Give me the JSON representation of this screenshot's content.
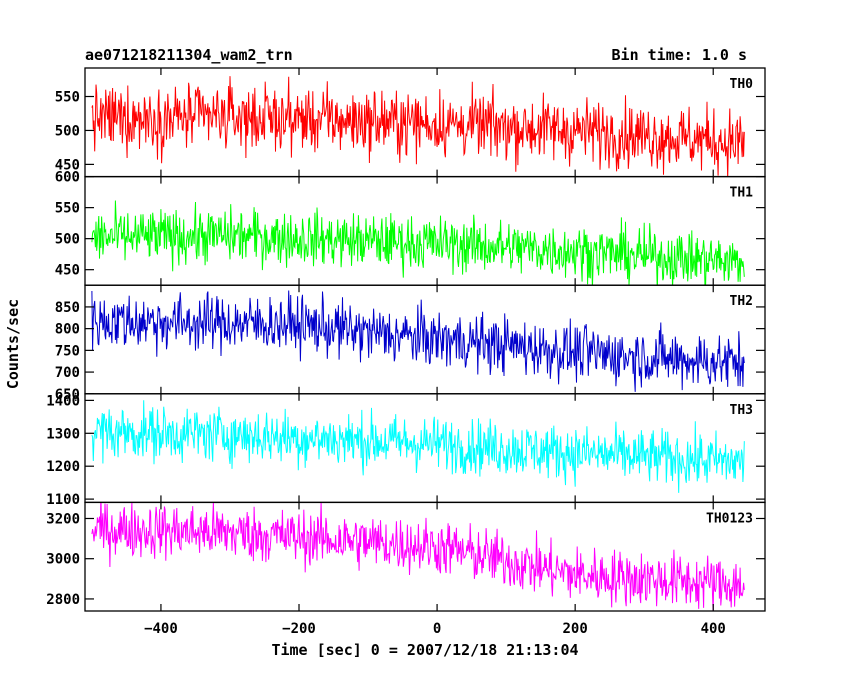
{
  "header": {
    "title": "ae071218211304_wam2_trn",
    "bin_time": "Bin time: 1.0 s"
  },
  "chart_data": {
    "type": "line",
    "xlabel": "Time [sec] 0 = 2007/12/18 21:13:04",
    "ylabel": "Counts/sec",
    "xlim": [
      -510,
      475
    ],
    "x_ticks": [
      -400,
      -200,
      0,
      200,
      400
    ],
    "x_tick_labels": [
      "−400",
      "−200",
      "0",
      "200",
      "400"
    ],
    "data_range_x": [
      -500,
      445
    ],
    "bin_time_s": 1.0,
    "panels": [
      {
        "name": "TH0",
        "color": "#ff0000",
        "ylim": [
          432,
          592
        ],
        "y_ticks": [
          450,
          500,
          550
        ],
        "y_tick_labels": [
          "450",
          "500",
          "550"
        ],
        "trend": [
          [
            -500,
            518
          ],
          [
            -300,
            520
          ],
          [
            0,
            510
          ],
          [
            200,
            500
          ],
          [
            445,
            482
          ]
        ],
        "noise_sd": 24
      },
      {
        "name": "TH1",
        "color": "#00ff00",
        "ylim": [
          425,
          600
        ],
        "y_ticks": [
          450,
          500,
          550,
          600
        ],
        "y_tick_labels": [
          "450",
          "500",
          "550",
          "600"
        ],
        "trend": [
          [
            -500,
            502
          ],
          [
            -300,
            505
          ],
          [
            0,
            492
          ],
          [
            200,
            480
          ],
          [
            445,
            462
          ]
        ],
        "noise_sd": 22
      },
      {
        "name": "TH2",
        "color": "#0000cc",
        "ylim": [
          650,
          900
        ],
        "y_ticks": [
          650,
          700,
          750,
          800,
          850
        ],
        "y_tick_labels": [
          "650",
          "700",
          "750",
          "800",
          "850"
        ],
        "trend": [
          [
            -500,
            818
          ],
          [
            -200,
            810
          ],
          [
            -100,
            790
          ],
          [
            100,
            762
          ],
          [
            200,
            745
          ],
          [
            445,
            720
          ]
        ],
        "noise_sd": 33
      },
      {
        "name": "TH3",
        "color": "#00ffff",
        "ylim": [
          1090,
          1420
        ],
        "y_ticks": [
          1100,
          1200,
          1300,
          1400
        ],
        "y_tick_labels": [
          "1100",
          "1200",
          "1300",
          "1400"
        ],
        "trend": [
          [
            -500,
            1305
          ],
          [
            -300,
            1295
          ],
          [
            0,
            1268
          ],
          [
            200,
            1240
          ],
          [
            445,
            1212
          ]
        ],
        "noise_sd": 42
      },
      {
        "name": "TH0123",
        "color": "#ff00ff",
        "ylim": [
          2740,
          3280
        ],
        "y_ticks": [
          2800,
          3000,
          3200
        ],
        "y_tick_labels": [
          "2800",
          "3000",
          "3200"
        ],
        "trend": [
          [
            -500,
            3148
          ],
          [
            -300,
            3130
          ],
          [
            0,
            3060
          ],
          [
            100,
            2990
          ],
          [
            200,
            2920
          ],
          [
            445,
            2870
          ]
        ],
        "noise_sd": 70
      }
    ]
  }
}
